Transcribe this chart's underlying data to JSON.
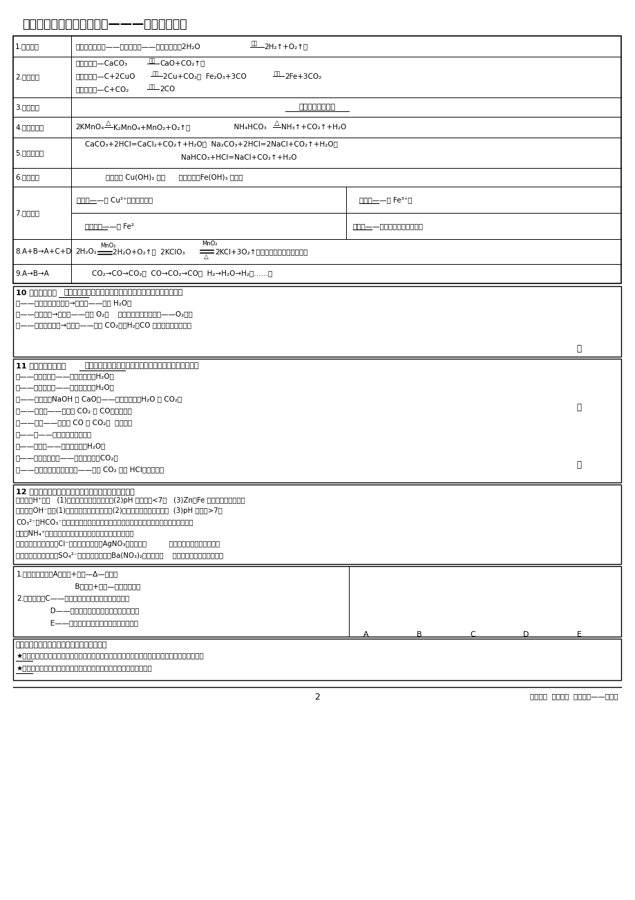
{
  "title": "三、常见物质及溶液的颜色———推断题的题眼",
  "page_num": "2",
  "footer": "好好学习  喜爱学习  快乐生活——冯老师",
  "bg": "#ffffff"
}
